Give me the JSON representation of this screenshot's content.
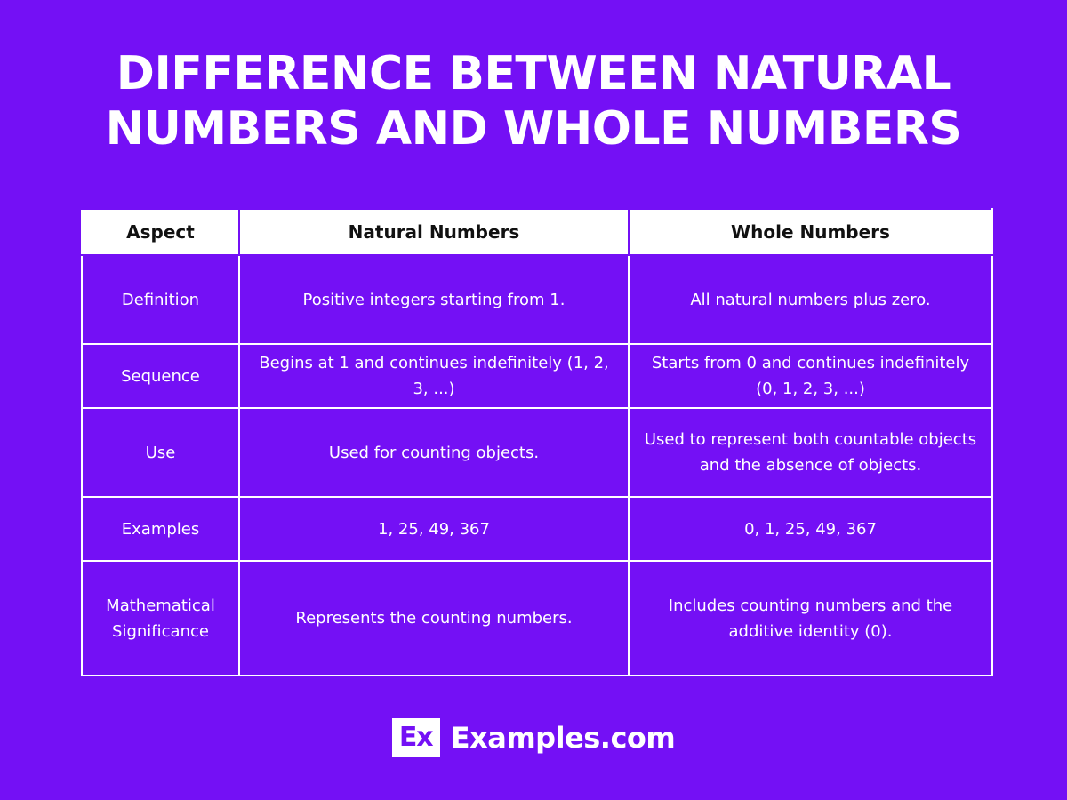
{
  "title": {
    "line1": "DIFFERENCE BETWEEN NATURAL",
    "line2": "NUMBERS AND WHOLE NUMBERS"
  },
  "table": {
    "headers": [
      "Aspect",
      "Natural Numbers",
      "Whole Numbers"
    ],
    "rows": [
      [
        "Definition",
        "Positive integers starting from 1.",
        "All natural numbers plus zero."
      ],
      [
        "Sequence",
        "Begins at 1 and continues indefinitely (1, 2, 3, ...)",
        "Starts from 0 and continues indefinitely (0, 1, 2, 3, ...)"
      ],
      [
        "Use",
        "Used for counting objects.",
        "Used to represent both countable objects and the absence of objects."
      ],
      [
        "Examples",
        "1, 25, 49, 367",
        "0, 1, 25, 49, 367"
      ],
      [
        "Mathematical Significance",
        "Represents the counting numbers.",
        "Includes counting numbers and the additive identity (0)."
      ]
    ]
  },
  "footer": {
    "logo_mark": "Ex",
    "brand": "Examples.com"
  },
  "colors": {
    "background": "#7410f5",
    "header_bg": "#ffffff",
    "text": "#ffffff"
  }
}
